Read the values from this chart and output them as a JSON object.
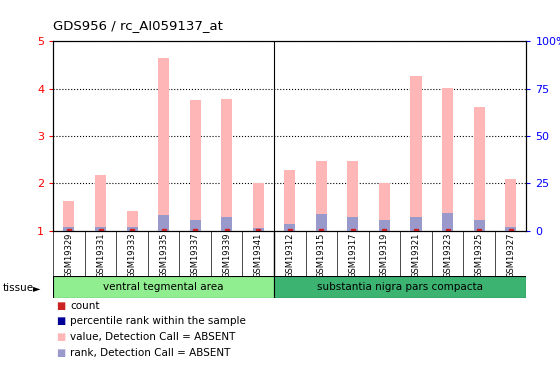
{
  "title": "GDS956 / rc_AI059137_at",
  "samples": [
    "GSM19329",
    "GSM19331",
    "GSM19333",
    "GSM19335",
    "GSM19337",
    "GSM19339",
    "GSM19341",
    "GSM19312",
    "GSM19315",
    "GSM19317",
    "GSM19319",
    "GSM19321",
    "GSM19323",
    "GSM19325",
    "GSM19327"
  ],
  "pink_values": [
    1.62,
    2.18,
    1.42,
    4.65,
    3.75,
    3.77,
    2.0,
    2.28,
    2.47,
    2.48,
    2.0,
    4.27,
    4.02,
    3.62,
    2.08
  ],
  "blue_values": [
    1.07,
    1.07,
    1.07,
    1.32,
    1.22,
    1.28,
    1.05,
    1.13,
    1.35,
    1.28,
    1.22,
    1.28,
    1.38,
    1.22,
    1.07
  ],
  "red_values": [
    1.0,
    1.0,
    1.0,
    1.0,
    1.0,
    1.0,
    1.0,
    1.0,
    1.0,
    1.0,
    1.0,
    1.0,
    1.0,
    1.0,
    1.0
  ],
  "groups": [
    {
      "label": "ventral tegmental area",
      "start": 0,
      "end": 7,
      "color": "#90ee90"
    },
    {
      "label": "substantia nigra pars compacta",
      "start": 7,
      "end": 15,
      "color": "#3cb371"
    }
  ],
  "ylim": [
    1,
    5
  ],
  "yticks_left": [
    1,
    2,
    3,
    4,
    5
  ],
  "yticks_right": [
    1,
    2,
    3,
    4,
    5
  ],
  "yticklabels_right": [
    "0",
    "25",
    "50",
    "75",
    "100"
  ],
  "pink_color": "#ffb6b6",
  "blue_color": "#9999cc",
  "red_color": "#cc2222",
  "plot_bg": "#ffffff",
  "xtick_bg": "#d3d3d3",
  "bar_width": 0.35,
  "tissue_label": "tissue",
  "sep_group": 7,
  "legend_items": [
    {
      "label": "count",
      "color": "#cc2222"
    },
    {
      "label": "percentile rank within the sample",
      "color": "#000099"
    },
    {
      "label": "value, Detection Call = ABSENT",
      "color": "#ffb6b6"
    },
    {
      "label": "rank, Detection Call = ABSENT",
      "color": "#9999cc"
    }
  ]
}
